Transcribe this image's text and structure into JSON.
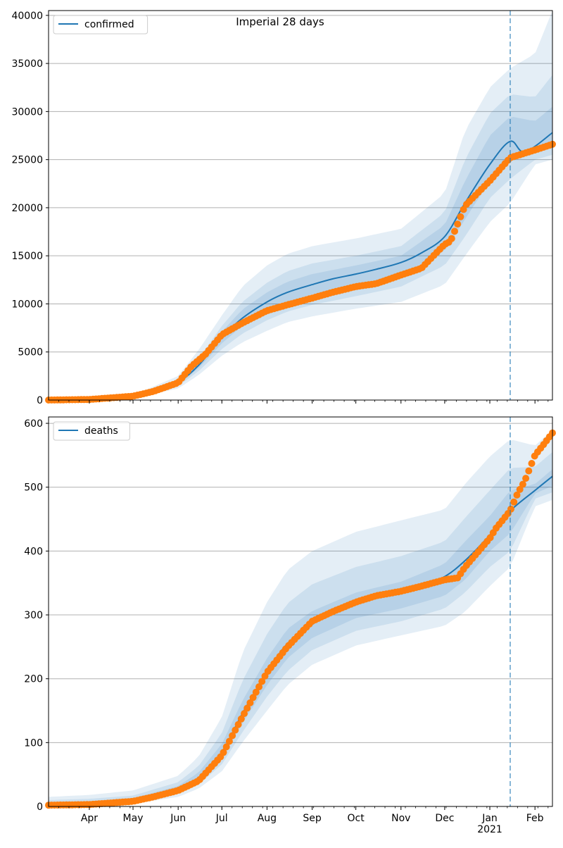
{
  "figure_title": "Imperial 28 days",
  "colors": {
    "model_line": "#1f77b4",
    "band": "#1f77b4",
    "observed": "#ff7f0e",
    "grid": "#b0b0b0",
    "vline": "#1f77b4"
  },
  "x_ticks": [
    {
      "date": "2020-04-01",
      "label": "Apr"
    },
    {
      "date": "2020-05-01",
      "label": "May"
    },
    {
      "date": "2020-06-01",
      "label": "Jun"
    },
    {
      "date": "2020-07-01",
      "label": "Jul"
    },
    {
      "date": "2020-08-01",
      "label": "Aug"
    },
    {
      "date": "2020-09-01",
      "label": "Sep"
    },
    {
      "date": "2020-10-01",
      "label": "Oct"
    },
    {
      "date": "2020-11-01",
      "label": "Nov"
    },
    {
      "date": "2020-12-01",
      "label": "Dec"
    },
    {
      "date": "2021-01-01",
      "label": "Jan",
      "sublabel": "2021"
    },
    {
      "date": "2021-02-01",
      "label": "Feb"
    }
  ],
  "chart_data": [
    {
      "type": "line",
      "legend": {
        "label": "confirmed",
        "placement": "upper-left"
      },
      "x_range": [
        "2020-03-04",
        "2021-02-13"
      ],
      "ylim": [
        0,
        40500
      ],
      "yticks": [
        0,
        5000,
        10000,
        15000,
        20000,
        25000,
        30000,
        35000,
        40000
      ],
      "grid": "horizontal",
      "forecast_start": "2021-01-15",
      "model_median": {
        "name": "confirmed",
        "x": [
          "2020-03-04",
          "2020-04-01",
          "2020-05-01",
          "2020-05-20",
          "2020-06-01",
          "2020-06-15",
          "2020-07-01",
          "2020-07-15",
          "2020-08-01",
          "2020-08-15",
          "2020-09-01",
          "2020-09-15",
          "2020-10-01",
          "2020-10-15",
          "2020-11-01",
          "2020-11-15",
          "2020-12-01",
          "2020-12-15",
          "2021-01-01",
          "2021-01-15",
          "2021-01-25",
          "2021-02-13"
        ],
        "y": [
          0,
          50,
          350,
          900,
          1800,
          3600,
          6500,
          8500,
          10200,
          11200,
          12000,
          12600,
          13100,
          13600,
          14300,
          15300,
          17000,
          20500,
          24500,
          26900,
          25800,
          27800
        ]
      },
      "bands": [
        {
          "x": [
            "2020-03-04",
            "2020-04-01",
            "2020-05-01",
            "2020-06-01",
            "2020-06-15",
            "2020-07-01",
            "2020-07-15",
            "2020-08-01",
            "2020-08-15",
            "2020-09-01",
            "2020-10-01",
            "2020-11-01",
            "2020-12-01",
            "2020-12-15",
            "2021-01-01",
            "2021-01-15",
            "2021-02-01",
            "2021-02-13"
          ],
          "lower": [
            0,
            30,
            200,
            1200,
            2600,
            4600,
            6000,
            7200,
            8100,
            8700,
            9500,
            10200,
            12000,
            15000,
            18500,
            20500,
            24500,
            25000
          ],
          "upper": [
            0,
            80,
            500,
            2500,
            5200,
            8800,
            11800,
            14000,
            15200,
            16000,
            16800,
            17800,
            21500,
            28000,
            32500,
            34500,
            36000,
            40500
          ]
        },
        {
          "x": [
            "2020-03-04",
            "2020-04-01",
            "2020-05-01",
            "2020-06-01",
            "2020-06-15",
            "2020-07-01",
            "2020-07-15",
            "2020-08-01",
            "2020-08-15",
            "2020-09-01",
            "2020-10-01",
            "2020-11-01",
            "2020-12-01",
            "2020-12-15",
            "2021-01-01",
            "2021-01-15",
            "2021-02-01",
            "2021-02-13"
          ],
          "lower": [
            0,
            40,
            270,
            1450,
            3000,
            5300,
            6900,
            8300,
            9200,
            9900,
            10800,
            11800,
            14000,
            17000,
            21000,
            23000,
            25000,
            25500
          ],
          "upper": [
            0,
            65,
            430,
            2150,
            4300,
            7700,
            10200,
            12200,
            13400,
            14200,
            15000,
            16000,
            19500,
            25000,
            29800,
            31800,
            31500,
            33800
          ]
        },
        {
          "x": [
            "2020-03-04",
            "2020-04-01",
            "2020-05-01",
            "2020-06-01",
            "2020-06-15",
            "2020-07-01",
            "2020-07-15",
            "2020-08-01",
            "2020-08-15",
            "2020-09-01",
            "2020-10-01",
            "2020-11-01",
            "2020-12-01",
            "2020-12-15",
            "2021-01-01",
            "2021-01-15",
            "2021-02-01",
            "2021-02-13"
          ],
          "lower": [
            0,
            45,
            310,
            1600,
            3300,
            5900,
            7700,
            9200,
            10200,
            11000,
            12000,
            13000,
            15500,
            18800,
            22800,
            25200,
            26000,
            26300
          ],
          "upper": [
            0,
            58,
            390,
            1950,
            3900,
            7100,
            9400,
            11200,
            12300,
            13100,
            14000,
            15000,
            18200,
            22800,
            27500,
            29500,
            29000,
            30500
          ]
        }
      ],
      "observed": {
        "x": [
          "2020-03-04",
          "2020-04-01",
          "2020-05-01",
          "2020-05-15",
          "2020-06-01",
          "2020-06-10",
          "2020-06-20",
          "2020-07-01",
          "2020-07-15",
          "2020-08-01",
          "2020-08-15",
          "2020-09-01",
          "2020-09-15",
          "2020-10-01",
          "2020-10-15",
          "2020-11-01",
          "2020-11-15",
          "2020-12-01",
          "2020-12-05",
          "2020-12-15",
          "2021-01-01",
          "2021-01-15",
          "2021-02-01",
          "2021-02-13"
        ],
        "y": [
          0,
          60,
          400,
          900,
          1800,
          3500,
          4800,
          6800,
          8000,
          9300,
          9900,
          10600,
          11200,
          11800,
          12100,
          13000,
          13700,
          16200,
          16500,
          20200,
          22800,
          25200,
          26000,
          26600
        ]
      }
    },
    {
      "type": "line",
      "legend": {
        "label": "deaths",
        "placement": "upper-left"
      },
      "x_range": [
        "2020-03-04",
        "2021-02-13"
      ],
      "ylim": [
        0,
        610
      ],
      "yticks": [
        0,
        100,
        200,
        300,
        400,
        500,
        600
      ],
      "grid": "horizontal",
      "forecast_start": "2021-01-15",
      "model_median": {
        "name": "deaths",
        "x": [
          "2020-03-04",
          "2020-04-01",
          "2020-05-01",
          "2020-05-15",
          "2020-06-01",
          "2020-06-15",
          "2020-07-01",
          "2020-07-15",
          "2020-08-01",
          "2020-08-15",
          "2020-09-01",
          "2020-09-15",
          "2020-10-01",
          "2020-10-15",
          "2020-11-01",
          "2020-11-15",
          "2020-12-01",
          "2020-12-15",
          "2021-01-01",
          "2021-01-15",
          "2021-02-01",
          "2021-02-13"
        ],
        "y": [
          2,
          4,
          9,
          15,
          27,
          45,
          85,
          145,
          210,
          255,
          285,
          305,
          318,
          328,
          337,
          345,
          360,
          385,
          425,
          463,
          495,
          517
        ]
      },
      "bands": [
        {
          "x": [
            "2020-03-04",
            "2020-04-01",
            "2020-05-01",
            "2020-06-01",
            "2020-06-15",
            "2020-07-01",
            "2020-07-15",
            "2020-08-01",
            "2020-08-15",
            "2020-09-01",
            "2020-10-01",
            "2020-11-01",
            "2020-12-01",
            "2020-12-15",
            "2021-01-01",
            "2021-01-15",
            "2021-02-01",
            "2021-02-13"
          ],
          "lower": [
            0,
            1,
            4,
            15,
            28,
            55,
            100,
            150,
            190,
            222,
            252,
            268,
            283,
            305,
            345,
            375,
            470,
            480
          ],
          "upper": [
            15,
            18,
            25,
            48,
            78,
            140,
            240,
            320,
            370,
            400,
            430,
            448,
            465,
            505,
            548,
            575,
            565,
            590
          ]
        },
        {
          "x": [
            "2020-03-04",
            "2020-04-01",
            "2020-05-01",
            "2020-06-01",
            "2020-06-15",
            "2020-07-01",
            "2020-07-15",
            "2020-08-01",
            "2020-08-15",
            "2020-09-01",
            "2020-10-01",
            "2020-11-01",
            "2020-12-01",
            "2020-12-15",
            "2021-01-01",
            "2021-01-15",
            "2021-02-01",
            "2021-02-13"
          ],
          "lower": [
            1,
            2,
            6,
            20,
            34,
            66,
            116,
            172,
            212,
            245,
            275,
            290,
            310,
            335,
            375,
            400,
            482,
            492
          ],
          "upper": [
            10,
            12,
            17,
            38,
            63,
            115,
            196,
            270,
            318,
            348,
            375,
            392,
            415,
            452,
            495,
            530,
            532,
            555
          ]
        },
        {
          "x": [
            "2020-03-04",
            "2020-04-01",
            "2020-05-01",
            "2020-06-01",
            "2020-06-15",
            "2020-07-01",
            "2020-07-15",
            "2020-08-01",
            "2020-08-15",
            "2020-09-01",
            "2020-10-01",
            "2020-11-01",
            "2020-12-01",
            "2020-12-15",
            "2021-01-01",
            "2021-01-15",
            "2021-02-01",
            "2021-02-13"
          ],
          "lower": [
            2,
            3,
            7,
            23,
            39,
            75,
            130,
            190,
            232,
            264,
            295,
            310,
            330,
            355,
            400,
            428,
            490,
            502
          ],
          "upper": [
            6,
            8,
            13,
            32,
            53,
            98,
            165,
            232,
            278,
            306,
            335,
            352,
            380,
            415,
            455,
            495,
            505,
            528
          ]
        }
      ],
      "observed": {
        "x": [
          "2020-03-04",
          "2020-04-01",
          "2020-05-01",
          "2020-05-15",
          "2020-06-01",
          "2020-06-15",
          "2020-07-01",
          "2020-07-15",
          "2020-08-01",
          "2020-08-15",
          "2020-09-01",
          "2020-09-15",
          "2020-10-01",
          "2020-10-15",
          "2020-11-01",
          "2020-11-15",
          "2020-12-01",
          "2020-12-10",
          "2020-12-15",
          "2021-01-01",
          "2021-01-05",
          "2021-01-15",
          "2021-01-20",
          "2021-01-25",
          "2021-02-01",
          "2021-02-08",
          "2021-02-13"
        ],
        "y": [
          2,
          3,
          8,
          15,
          25,
          40,
          80,
          140,
          210,
          250,
          290,
          305,
          320,
          330,
          337,
          345,
          355,
          358,
          375,
          420,
          435,
          463,
          490,
          510,
          550,
          570,
          585
        ]
      }
    }
  ]
}
